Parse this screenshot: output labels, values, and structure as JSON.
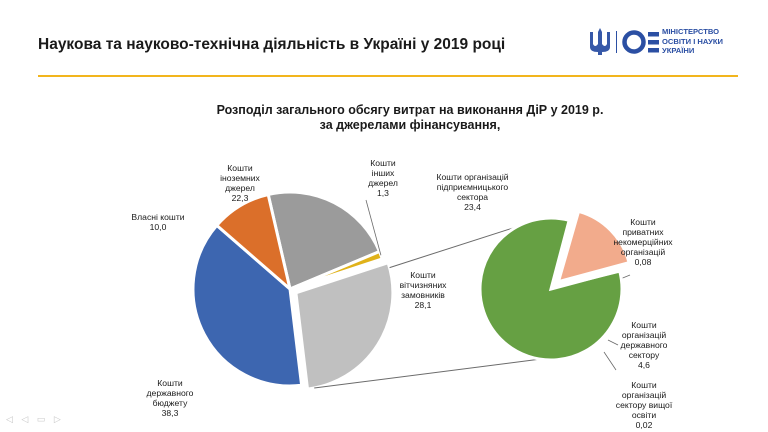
{
  "header": {
    "title": "Наукова та науково-технічна діяльність в Україні у 2019 році",
    "ministry_line1": "МІНІСТЕРСТВО",
    "ministry_line2": "ОСВІТИ І НАУКИ",
    "ministry_line3": "УКРАЇНИ",
    "accent_color": "#f2b51d",
    "logo_color": "#2b4fa3"
  },
  "chart_data": {
    "type": "pie",
    "title_line1": "Розподіл загального обсягу витрат на виконання ДіР у 2019 р.",
    "title_line2": "за джерелами фінансування,",
    "main": {
      "slices": [
        {
          "label": [
            "Кошти",
            "іноземних",
            "джерел"
          ],
          "value": 22.3,
          "value_text": "22,3",
          "color": "#9b9b9b"
        },
        {
          "label": [
            "Кошти",
            "інших",
            "джерел"
          ],
          "value": 1.3,
          "value_text": "1,3",
          "color": "#e0b21a"
        },
        {
          "label": [
            "Кошти",
            "вітчизняних",
            "замовників"
          ],
          "value": 28.1,
          "value_text": "28,1",
          "color": "#c0c0c0"
        },
        {
          "label": [
            "Кошти",
            "державного",
            "бюджету"
          ],
          "value": 38.3,
          "value_text": "38,3",
          "color": "#3d66b0"
        },
        {
          "label": [
            "Власні кошти"
          ],
          "value": 10.0,
          "value_text": "10,0",
          "color": "#db6f2a"
        }
      ]
    },
    "breakdown": {
      "parent": "Кошти вітчизняних замовників",
      "slices": [
        {
          "label": [
            "Кошти організацій",
            "підприємницького",
            "сектора"
          ],
          "value": 23.4,
          "value_text": "23,4",
          "color": "#66a043"
        },
        {
          "label": [
            "Кошти",
            "приватних",
            "некомерційних",
            "організацій"
          ],
          "value": 0.08,
          "value_text": "0,08",
          "color": "#e8b0a0"
        },
        {
          "label": [
            "Кошти",
            "організацій",
            "державного",
            "сектору"
          ],
          "value": 4.6,
          "value_text": "4,6",
          "color": "#f2ab8c"
        },
        {
          "label": [
            "Кошти",
            "організацій",
            "сектору вищої",
            "освіти"
          ],
          "value": 0.02,
          "value_text": "0,02",
          "color": "#f2ab8c"
        }
      ]
    }
  }
}
